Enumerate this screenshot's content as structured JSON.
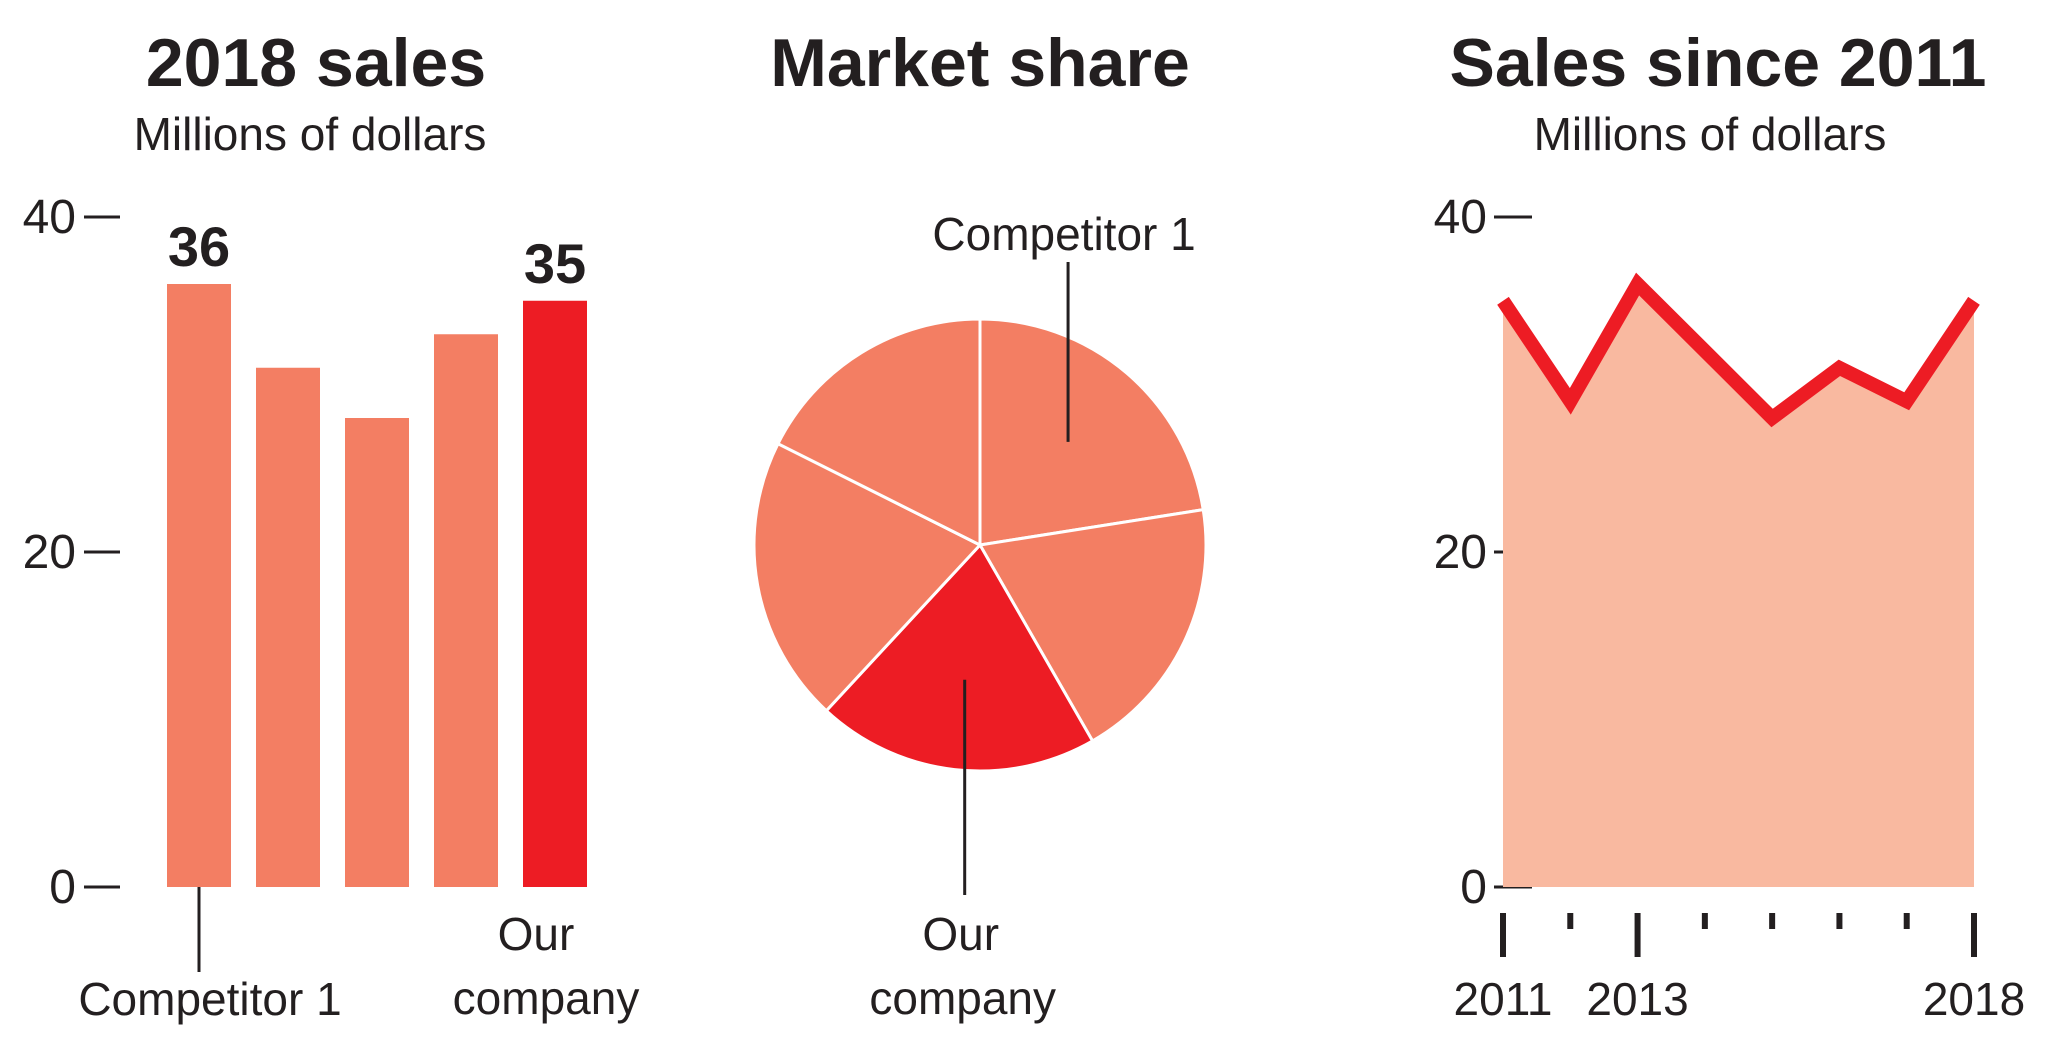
{
  "colors": {
    "text": "#231f20",
    "bar": "#f37e63",
    "highlight": "#ed1c24",
    "area": "#f9b9a0",
    "line": "#ed1c24",
    "slice_border": "#ffffff"
  },
  "chart_data": [
    {
      "type": "bar",
      "title": "2018 sales",
      "subtitle": "Millions of dollars",
      "ylim": [
        0,
        40
      ],
      "yticks": [
        0,
        20,
        40
      ],
      "ytick_labels": [
        "0",
        "20",
        "40"
      ],
      "categories": [
        "Competitor 1",
        "",
        "",
        "",
        "Our company"
      ],
      "values": [
        36,
        31,
        28,
        33,
        35
      ],
      "highlight_index": 4,
      "data_labels": [
        {
          "index": 0,
          "text": "36"
        },
        {
          "index": 4,
          "text": "35"
        }
      ],
      "callouts": [
        {
          "index": 0,
          "lines": [
            "Competitor 1"
          ]
        },
        {
          "index": 4,
          "lines": [
            "Our",
            "company"
          ]
        }
      ]
    },
    {
      "type": "pie",
      "title": "Market share",
      "slices": [
        {
          "value": 22.5,
          "highlight": false
        },
        {
          "value": 19.2,
          "highlight": false
        },
        {
          "value": 20.2,
          "highlight": true
        },
        {
          "value": 20.5,
          "highlight": false
        },
        {
          "value": 17.6,
          "highlight": false
        }
      ],
      "callouts": [
        {
          "slice": 0,
          "lines": [
            "Competitor 1"
          ]
        },
        {
          "slice": 2,
          "lines": [
            "Our",
            "company"
          ]
        }
      ]
    },
    {
      "type": "area",
      "title": "Sales since 2011",
      "subtitle": "Millions of dollars",
      "ylim": [
        0,
        40
      ],
      "yticks": [
        0,
        20,
        40
      ],
      "ytick_labels": [
        "0",
        "20",
        "40"
      ],
      "x": [
        2011,
        2012,
        2013,
        2014,
        2015,
        2016,
        2017,
        2018
      ],
      "values": [
        35,
        29,
        36,
        32,
        28,
        31,
        29,
        35
      ],
      "xtick_labels": [
        {
          "x": 2011,
          "text": "2011"
        },
        {
          "x": 2013,
          "text": "2013"
        },
        {
          "x": 2018,
          "text": "2018"
        }
      ]
    }
  ]
}
